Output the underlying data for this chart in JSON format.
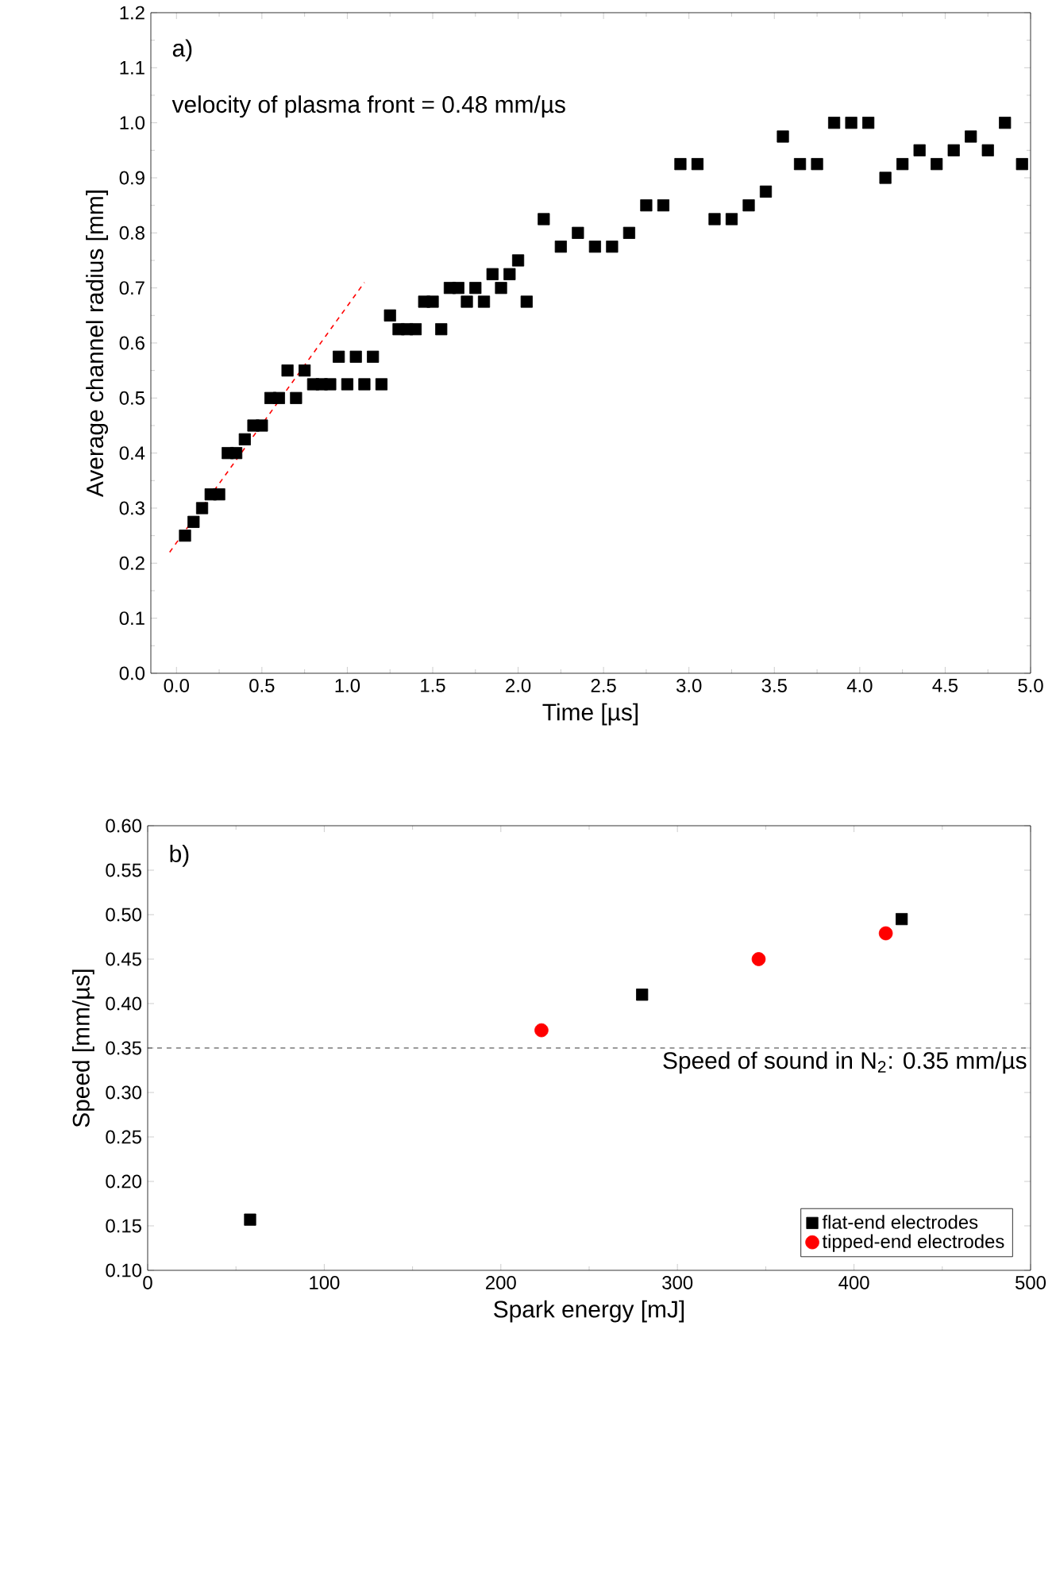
{
  "chart_data": [
    {
      "type": "scatter",
      "xlabel": "Time [µs]",
      "ylabel": "Average channel radius [mm]",
      "xlim": [
        -0.15,
        5.0
      ],
      "ylim": [
        0.0,
        1.2
      ],
      "xticks": [
        {
          "value": 0,
          "label": "0.0"
        },
        0.5,
        {
          "value": 1,
          "label": "1.0"
        },
        1.5,
        {
          "value": 2,
          "label": "2.0"
        },
        2.5,
        {
          "value": 3,
          "label": "3.0"
        },
        3.5,
        {
          "value": 4,
          "label": "4.0"
        },
        4.5,
        {
          "value": 5,
          "label": "5.0"
        }
      ],
      "yticks": [
        {
          "value": 0,
          "label": "0.0"
        },
        0.1,
        0.2,
        0.3,
        0.4,
        0.5,
        0.6,
        0.7,
        0.8,
        0.9,
        {
          "value": 1,
          "label": "1.0"
        },
        1.1,
        1.2
      ],
      "annotations": [
        "a)",
        "velocity of plasma front = 0.48 mm/µs"
      ],
      "series": [
        {
          "color": "#000000",
          "marker": "square",
          "x": [
            0.05,
            0.1,
            0.15,
            0.2,
            0.25,
            0.3,
            0.35,
            0.4,
            0.45,
            0.5,
            0.55,
            0.6,
            0.65,
            0.7,
            0.75,
            0.8,
            0.85,
            0.9,
            0.95,
            1.0,
            1.05,
            1.1,
            1.15,
            1.2,
            1.25,
            1.3,
            1.35,
            1.4,
            1.45,
            1.5,
            1.55,
            1.6,
            1.65,
            1.7,
            1.75,
            1.8,
            1.85,
            1.9,
            1.95,
            2.0,
            2.05,
            2.15,
            2.25,
            2.35,
            2.45,
            2.55,
            2.65,
            2.75,
            2.85,
            2.95,
            3.05,
            3.15,
            3.25,
            3.35,
            3.45,
            3.55,
            3.65,
            3.75,
            3.85,
            3.95,
            4.05,
            4.15,
            4.25,
            4.35,
            4.45,
            4.55,
            4.65,
            4.75,
            4.85,
            4.95
          ],
          "values": [
            0.25,
            0.275,
            0.3,
            0.325,
            0.325,
            0.4,
            0.4,
            0.425,
            0.45,
            0.45,
            0.5,
            0.5,
            0.55,
            0.5,
            0.55,
            0.525,
            0.525,
            0.525,
            0.575,
            0.525,
            0.575,
            0.525,
            0.575,
            0.525,
            0.65,
            0.625,
            0.625,
            0.625,
            0.675,
            0.675,
            0.625,
            0.7,
            0.7,
            0.675,
            0.7,
            0.675,
            0.725,
            0.7,
            0.725,
            0.75,
            0.675,
            0.825,
            0.775,
            0.8,
            0.775,
            0.775,
            0.8,
            0.85,
            0.85,
            0.925,
            0.925,
            0.825,
            0.825,
            0.85,
            0.875,
            0.975,
            0.925,
            0.925,
            1.0,
            1.0,
            1.0,
            0.9,
            0.925,
            0.95,
            0.925,
            0.95,
            0.975,
            0.95,
            1.0,
            0.925
          ]
        },
        {
          "type": "line",
          "color": "#ff0000",
          "line_style": "dashed",
          "x": [
            -0.04,
            1.1
          ],
          "values": [
            0.22,
            0.71
          ]
        }
      ]
    },
    {
      "type": "scatter",
      "xlabel": "Spark energy [mJ]",
      "ylabel": "Speed [mm/µs]",
      "xlim": [
        0,
        500
      ],
      "ylim": [
        0.1,
        0.6
      ],
      "xticks": [
        0,
        100,
        200,
        300,
        400,
        500
      ],
      "yticks": [
        {
          "value": 0.1,
          "label": "0.10"
        },
        {
          "value": 0.15,
          "label": "0.15"
        },
        {
          "value": 0.2,
          "label": "0.20"
        },
        {
          "value": 0.25,
          "label": "0.25"
        },
        {
          "value": 0.3,
          "label": "0.30"
        },
        {
          "value": 0.35,
          "label": "0.35"
        },
        {
          "value": 0.4,
          "label": "0.40"
        },
        {
          "value": 0.45,
          "label": "0.45"
        },
        {
          "value": 0.5,
          "label": "0.50"
        },
        {
          "value": 0.55,
          "label": "0.55"
        },
        {
          "value": 0.6,
          "label": "0.60"
        }
      ],
      "annotations": [
        "b)"
      ],
      "legend": "bottom right",
      "ref_lines": [
        {
          "axis": "y",
          "value": 0.35,
          "label": "Speed of sound in N$_{2}$: 0.35 mm/µs",
          "color": "#000000",
          "line_style": "dashed"
        }
      ],
      "series": [
        {
          "name": "flat-end electrodes",
          "color": "#000000",
          "marker": "square",
          "x": [
            58,
            280,
            427
          ],
          "values": [
            0.157,
            0.41,
            0.495
          ]
        },
        {
          "name": "tipped-end electrodes",
          "color": "#ff0000",
          "marker": "circle",
          "x": [
            223,
            346,
            418
          ],
          "values": [
            0.37,
            0.45,
            0.479
          ]
        }
      ]
    }
  ]
}
